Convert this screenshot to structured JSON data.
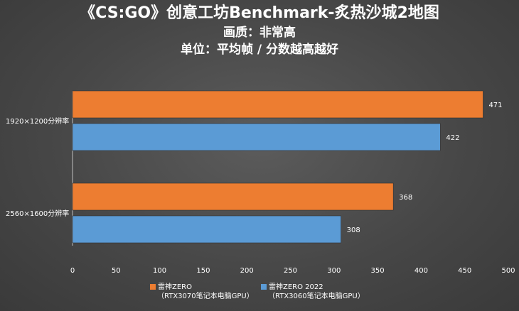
{
  "titles": {
    "line1": "《CS:GO》创意工坊Benchmark-炙热沙城2地图",
    "line2": "画质：非常高",
    "line3": "单位：平均帧 / 分数越高越好"
  },
  "chart_data": {
    "type": "bar",
    "orientation": "horizontal",
    "categories": [
      "1920×1200分辨率",
      "2560×1600分辨率"
    ],
    "series": [
      {
        "name": "雷神ZERO",
        "subtitle": "（RTX3070笔记本电脑GPU）",
        "color": "#ed7d31",
        "values": [
          471,
          368
        ]
      },
      {
        "name": "雷神ZERO 2022",
        "subtitle": "（RTX3060笔记本电脑GPU）",
        "color": "#5b9bd5",
        "values": [
          422,
          308
        ]
      }
    ],
    "xlim": [
      0,
      500
    ],
    "xticks": [
      0,
      50,
      100,
      150,
      200,
      250,
      300,
      350,
      400,
      450,
      500
    ],
    "grid": false,
    "legend_position": "bottom"
  }
}
